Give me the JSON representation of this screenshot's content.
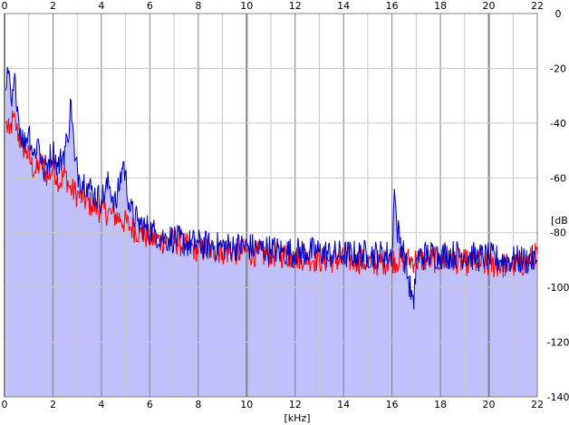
{
  "chart_data": {
    "type": "line",
    "title": "",
    "xlabel": "[kHz]",
    "ylabel": "[dB]",
    "xlim": [
      0,
      22
    ],
    "ylim": [
      -140,
      0
    ],
    "x_ticks": [
      0,
      2,
      4,
      6,
      8,
      10,
      12,
      14,
      16,
      18,
      20,
      22
    ],
    "y_ticks": [
      0,
      -20,
      -40,
      -60,
      -80,
      -100,
      -120,
      -140
    ],
    "grid": true,
    "colors": {
      "background": "#ffffff",
      "fill": "#c0c0fa",
      "grid_minor": "#c8c8c8",
      "grid_major": "#808080",
      "series_red": "#ff0000",
      "series_blue": "#0000c0"
    },
    "series": [
      {
        "name": "",
        "color": "#ff0000",
        "x": [
          0.05,
          0.2,
          0.35,
          0.5,
          0.7,
          0.9,
          1.1,
          1.3,
          1.5,
          1.8,
          2.0,
          2.3,
          2.5,
          2.7,
          3.0,
          3.3,
          3.6,
          4.0,
          4.4,
          4.8,
          5.2,
          5.6,
          6.0,
          6.5,
          7.0,
          7.5,
          8.0,
          8.5,
          9.0,
          9.5,
          10.0,
          10.5,
          11.0,
          11.5,
          12.0,
          12.5,
          13.0,
          13.5,
          14.0,
          14.5,
          15.0,
          15.5,
          16.0,
          16.5,
          17.0,
          17.5,
          18.0,
          18.5,
          19.0,
          19.5,
          20.0,
          20.5,
          21.0,
          21.5,
          22.0
        ],
        "y": [
          -40,
          -44,
          -38,
          -42,
          -48,
          -50,
          -55,
          -58,
          -54,
          -60,
          -56,
          -62,
          -58,
          -64,
          -66,
          -68,
          -70,
          -72,
          -73,
          -75,
          -78,
          -80,
          -82,
          -83,
          -83,
          -85,
          -86,
          -86,
          -87,
          -87,
          -87,
          -88,
          -88,
          -88,
          -89,
          -89,
          -90,
          -90,
          -90,
          -90,
          -91,
          -91,
          -90,
          -90,
          -90,
          -90,
          -90,
          -90,
          -91,
          -91,
          -92,
          -92,
          -92,
          -91,
          -88
        ]
      },
      {
        "name": "",
        "color": "#0000c0",
        "x": [
          0.05,
          0.15,
          0.3,
          0.45,
          0.6,
          0.8,
          1.0,
          1.2,
          1.4,
          1.6,
          1.8,
          2.0,
          2.2,
          2.4,
          2.6,
          2.75,
          2.9,
          3.1,
          3.4,
          3.7,
          4.0,
          4.3,
          4.6,
          4.9,
          5.2,
          5.5,
          5.8,
          6.2,
          6.6,
          7.0,
          7.5,
          8.0,
          8.5,
          9.0,
          9.5,
          10.0,
          10.5,
          11.0,
          11.5,
          12.0,
          12.5,
          13.0,
          13.5,
          14.0,
          14.5,
          15.0,
          15.5,
          16.0,
          16.1,
          16.2,
          16.5,
          16.9,
          17.0,
          17.5,
          18.0,
          18.5,
          19.0,
          19.5,
          20.0,
          20.5,
          21.0,
          21.5,
          22.0
        ],
        "y": [
          -28,
          -22,
          -34,
          -24,
          -40,
          -48,
          -42,
          -52,
          -46,
          -58,
          -54,
          -50,
          -56,
          -52,
          -46,
          -32,
          -54,
          -60,
          -62,
          -66,
          -68,
          -62,
          -70,
          -54,
          -72,
          -76,
          -78,
          -80,
          -82,
          -82,
          -84,
          -84,
          -85,
          -85,
          -85,
          -85,
          -86,
          -86,
          -87,
          -87,
          -87,
          -87,
          -88,
          -88,
          -88,
          -88,
          -88,
          -88,
          -64,
          -78,
          -88,
          -108,
          -89,
          -88,
          -88,
          -88,
          -88,
          -89,
          -89,
          -90,
          -90,
          -90,
          -90
        ]
      }
    ]
  }
}
